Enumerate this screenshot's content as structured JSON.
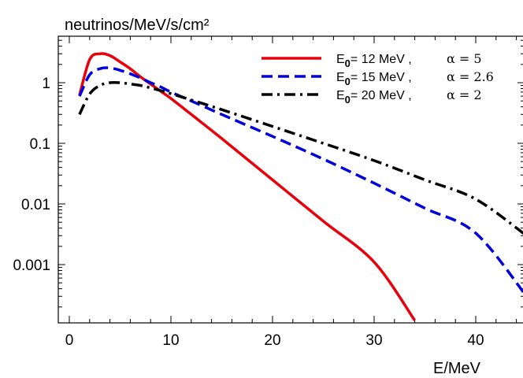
{
  "chart_data": {
    "type": "line",
    "ylabel": "neutrinos/MeV/s/cm²",
    "xlabel": "E/MeV",
    "x_scale": "linear",
    "y_scale": "log",
    "xlim": [
      0,
      45
    ],
    "ylim": [
      0.00012,
      6
    ],
    "x_ticks": [
      {
        "value": 0,
        "label": "0"
      },
      {
        "value": 10,
        "label": "10"
      },
      {
        "value": 20,
        "label": "20"
      },
      {
        "value": 30,
        "label": "30"
      },
      {
        "value": 40,
        "label": "40"
      }
    ],
    "y_ticks": [
      {
        "value": 1,
        "label": "1"
      },
      {
        "value": 0.1,
        "label": "0.1"
      },
      {
        "value": 0.01,
        "label": "0.01"
      },
      {
        "value": 0.001,
        "label": "0.001"
      }
    ],
    "grid": false,
    "legend_position": "top-right",
    "series": [
      {
        "name": "E0= 12 MeV ,",
        "name_base": "E",
        "name_sub": "0",
        "name_rest": "= 12 MeV ,",
        "alpha_label": "α = 5",
        "color": "#e8000b",
        "dash": "solid",
        "x": [
          1,
          2,
          3,
          4,
          5,
          6,
          7,
          8,
          9,
          10,
          12,
          15,
          20,
          25,
          30,
          34
        ],
        "y": [
          0.62,
          2.4,
          3.0,
          2.8,
          2.2,
          1.7,
          1.25,
          0.95,
          0.72,
          0.55,
          0.3,
          0.12,
          0.025,
          0.0052,
          0.0011,
          0.00012
        ]
      },
      {
        "name": "E0= 15 MeV ,",
        "name_base": "E",
        "name_sub": "0",
        "name_rest": "= 15 MeV ,",
        "alpha_label": "α = 2.6",
        "color": "#0000dd",
        "dash": "dashed",
        "x": [
          1,
          2,
          3,
          4,
          5,
          6,
          7,
          8,
          9,
          10,
          12,
          15,
          20,
          25,
          30,
          35,
          40,
          45
        ],
        "y": [
          0.6,
          1.35,
          1.7,
          1.75,
          1.6,
          1.4,
          1.2,
          1.0,
          0.85,
          0.7,
          0.5,
          0.3,
          0.13,
          0.055,
          0.022,
          0.0085,
          0.0033,
          0.0003
        ]
      },
      {
        "name": "E0= 20 MeV ,",
        "name_base": "E",
        "name_sub": "0",
        "name_rest": "= 20 MeV ,",
        "alpha_label": "α = 2",
        "color": "#000000",
        "dash": "dashdot",
        "x": [
          1,
          2,
          3,
          4,
          5,
          6,
          7,
          8,
          9,
          10,
          12,
          15,
          20,
          25,
          30,
          35,
          40,
          45
        ],
        "y": [
          0.3,
          0.65,
          0.9,
          1.0,
          1.0,
          0.95,
          0.9,
          0.82,
          0.74,
          0.66,
          0.52,
          0.36,
          0.19,
          0.1,
          0.052,
          0.025,
          0.012,
          0.003
        ]
      }
    ]
  }
}
